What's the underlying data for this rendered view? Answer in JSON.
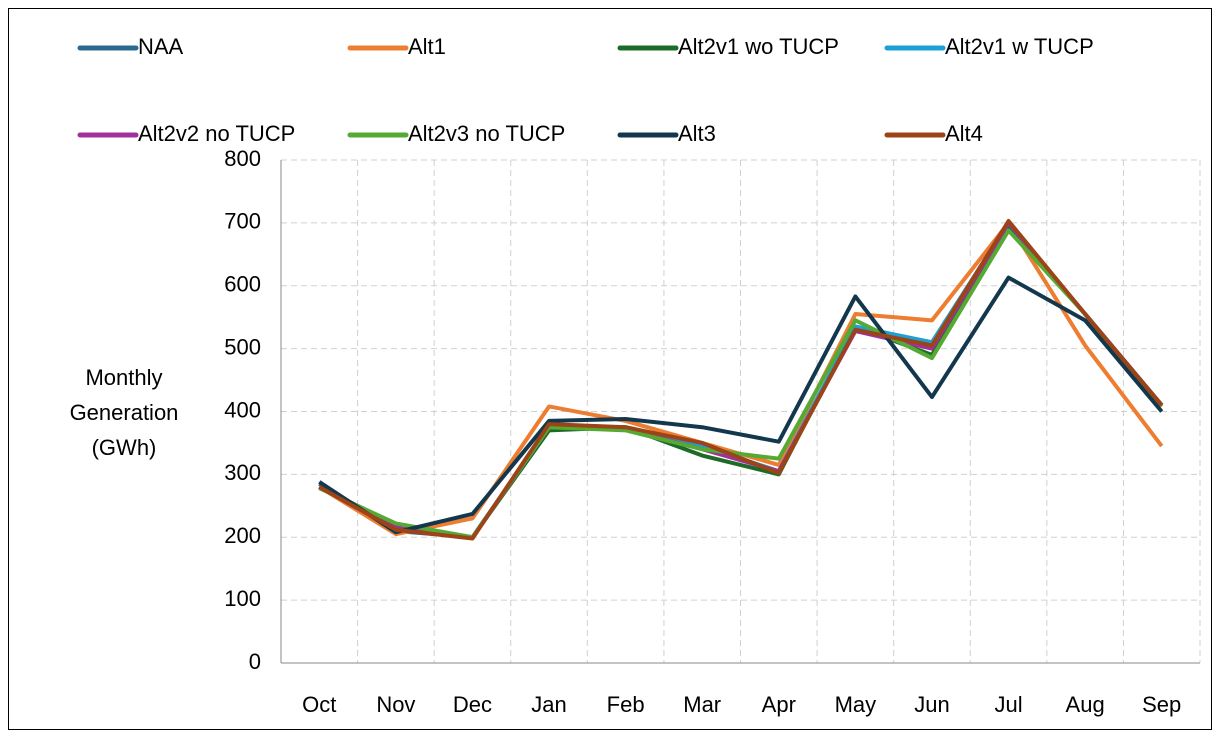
{
  "chart_data": {
    "type": "line",
    "y_label": "Monthly Generation (GWh)",
    "categories": [
      "Oct",
      "Nov",
      "Dec",
      "Jan",
      "Feb",
      "Mar",
      "Apr",
      "May",
      "Jun",
      "Jul",
      "Aug",
      "Sep"
    ],
    "series": [
      {
        "name": "NAA",
        "color": "#2b6a8f",
        "values": [
          285,
          210,
          200,
          375,
          375,
          345,
          305,
          535,
          510,
          700,
          555,
          410
        ]
      },
      {
        "name": "Alt1",
        "color": "#ed7d31",
        "values": [
          280,
          205,
          230,
          408,
          385,
          350,
          315,
          555,
          545,
          700,
          505,
          345
        ]
      },
      {
        "name": "Alt2v1 wo TUCP",
        "color": "#1e6b28",
        "values": [
          280,
          220,
          200,
          370,
          375,
          330,
          300,
          535,
          490,
          695,
          555,
          410
        ]
      },
      {
        "name": "Alt2v1 w TUCP",
        "color": "#1ba1d6",
        "values": [
          280,
          215,
          200,
          375,
          375,
          345,
          305,
          535,
          510,
          700,
          555,
          410
        ]
      },
      {
        "name": "Alt2v2 no TUCP",
        "color": "#a0309c",
        "values": [
          280,
          215,
          200,
          375,
          372,
          340,
          305,
          528,
          500,
          700,
          555,
          410
        ]
      },
      {
        "name": "Alt2v3 no TUCP",
        "color": "#55aa33",
        "values": [
          278,
          222,
          200,
          375,
          370,
          340,
          325,
          545,
          485,
          688,
          555,
          408
        ]
      },
      {
        "name": "Alt3",
        "color": "#13384e",
        "values": [
          288,
          208,
          237,
          385,
          388,
          375,
          352,
          583,
          423,
          613,
          545,
          400
        ]
      },
      {
        "name": "Alt4",
        "color": "#9c4317",
        "values": [
          280,
          212,
          198,
          380,
          375,
          350,
          302,
          530,
          505,
          703,
          555,
          410
        ]
      }
    ],
    "ylim": [
      0,
      800
    ],
    "yticks": [
      0,
      100,
      200,
      300,
      400,
      500,
      600,
      700,
      800
    ],
    "grid": true,
    "legend": "top"
  }
}
